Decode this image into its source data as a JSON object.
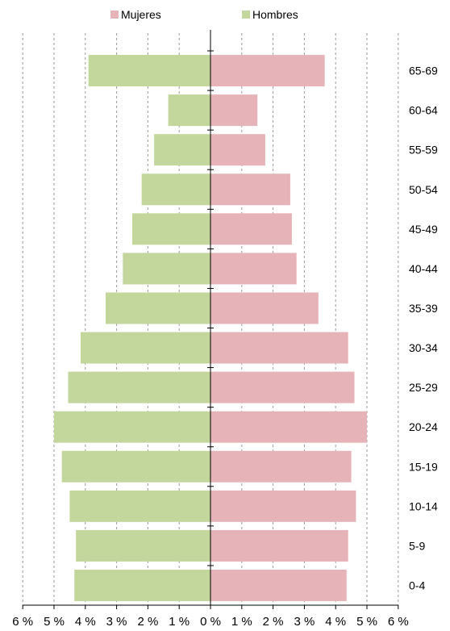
{
  "chart_data": {
    "type": "bar",
    "orientation": "horizontal",
    "layout": "population-pyramid",
    "categories": [
      "0-4",
      "5-9",
      "10-14",
      "15-19",
      "20-24",
      "25-29",
      "30-34",
      "35-39",
      "40-44",
      "45-49",
      "50-54",
      "55-59",
      "60-64",
      "65-69"
    ],
    "series": [
      {
        "name": "Mujeres",
        "color": "#e6b3b8",
        "side": "right",
        "values": [
          4.35,
          4.4,
          4.65,
          4.5,
          5.0,
          4.6,
          4.4,
          3.45,
          2.75,
          2.6,
          2.55,
          1.75,
          1.5,
          3.65
        ]
      },
      {
        "name": "Hombres",
        "color": "#c3d69b",
        "side": "left",
        "values": [
          4.35,
          4.3,
          4.5,
          4.75,
          5.0,
          4.55,
          4.15,
          3.35,
          2.8,
          2.5,
          2.2,
          1.8,
          1.35,
          3.9
        ]
      }
    ],
    "x_ticks": [
      "6 %",
      "5 %",
      "4 %",
      "3 %",
      "2 %",
      "1 %",
      "0 %",
      "1 %",
      "2 %",
      "3 %",
      "4 %",
      "5 %",
      "6 %"
    ],
    "xlim": [
      -6,
      6
    ],
    "grid": "vertical-dashed",
    "legend_position": "top"
  }
}
